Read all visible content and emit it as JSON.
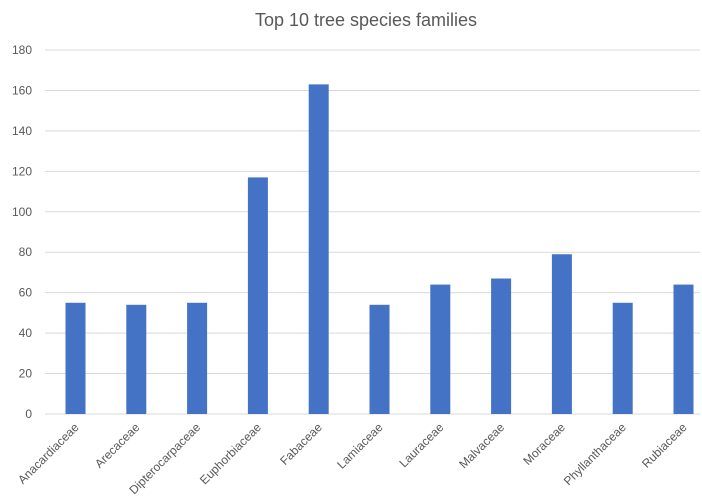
{
  "chart_data": {
    "type": "bar",
    "title": "Top 10 tree species families",
    "xlabel": "",
    "ylabel": "",
    "categories": [
      "Anacardiaceae",
      "Arecaceae",
      "Dipterocarpaceae",
      "Euphorbiaceae",
      "Fabaceae",
      "Lamiaceae",
      "Lauraceae",
      "Malvaceae",
      "Moraceae",
      "Phyllanthaceae",
      "Rubiaceae"
    ],
    "values": [
      55,
      54,
      55,
      117,
      163,
      54,
      64,
      67,
      79,
      55,
      64
    ],
    "ylim": [
      0,
      180
    ],
    "yticks": [
      "0",
      "20",
      "40",
      "60",
      "80",
      "100",
      "120",
      "140",
      "160",
      "180"
    ],
    "grid": true,
    "legend": "none",
    "bar_color": "#4472c4"
  }
}
